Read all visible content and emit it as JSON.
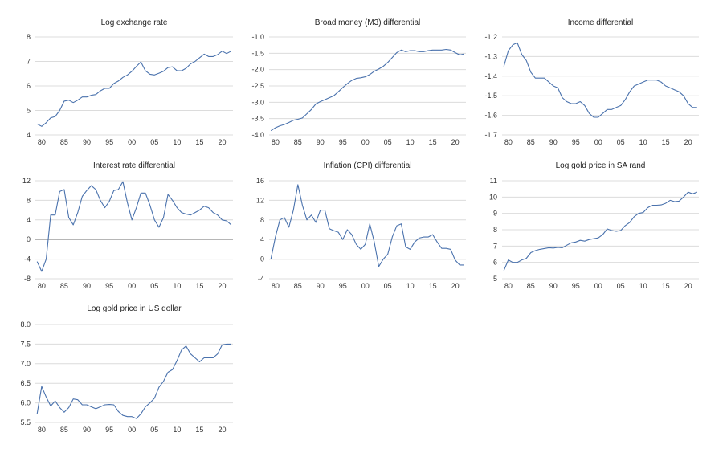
{
  "style": {
    "line_color": "#4a72ad",
    "grid_color": "#dcdcdc",
    "zero_line_color": "#9e9e9e"
  },
  "chart_data": [
    {
      "type": "line",
      "title": "Log exchange rate",
      "x": [
        1979,
        1980,
        1981,
        1982,
        1983,
        1984,
        1985,
        1986,
        1987,
        1988,
        1989,
        1990,
        1991,
        1992,
        1993,
        1994,
        1995,
        1996,
        1997,
        1998,
        1999,
        2000,
        2001,
        2002,
        2003,
        2004,
        2005,
        2006,
        2007,
        2008,
        2009,
        2010,
        2011,
        2012,
        2013,
        2014,
        2015,
        2016,
        2017,
        2018,
        2019,
        2020,
        2021,
        2022
      ],
      "values": [
        4.45,
        4.35,
        4.5,
        4.7,
        4.75,
        5.0,
        5.38,
        5.42,
        5.32,
        5.42,
        5.55,
        5.55,
        5.62,
        5.65,
        5.8,
        5.9,
        5.9,
        6.1,
        6.2,
        6.35,
        6.45,
        6.6,
        6.8,
        6.98,
        6.62,
        6.48,
        6.45,
        6.52,
        6.6,
        6.75,
        6.78,
        6.62,
        6.62,
        6.72,
        6.9,
        7.0,
        7.15,
        7.3,
        7.2,
        7.2,
        7.28,
        7.42,
        7.32,
        7.42
      ],
      "ylim": [
        4,
        8
      ],
      "yticks": [
        "4",
        "5",
        "6",
        "7",
        "8"
      ],
      "xticks": [
        "80",
        "85",
        "90",
        "95",
        "00",
        "05",
        "10",
        "15",
        "20"
      ]
    },
    {
      "type": "line",
      "title": "Broad money (M3) differential",
      "x": [
        1979,
        1980,
        1981,
        1982,
        1983,
        1984,
        1985,
        1986,
        1987,
        1988,
        1989,
        1990,
        1991,
        1992,
        1993,
        1994,
        1995,
        1996,
        1997,
        1998,
        1999,
        2000,
        2001,
        2002,
        2003,
        2004,
        2005,
        2006,
        2007,
        2008,
        2009,
        2010,
        2011,
        2012,
        2013,
        2014,
        2015,
        2016,
        2017,
        2018,
        2019,
        2020,
        2021,
        2022
      ],
      "values": [
        -3.87,
        -3.78,
        -3.72,
        -3.68,
        -3.62,
        -3.55,
        -3.52,
        -3.48,
        -3.35,
        -3.22,
        -3.05,
        -2.98,
        -2.92,
        -2.86,
        -2.8,
        -2.68,
        -2.55,
        -2.43,
        -2.33,
        -2.27,
        -2.25,
        -2.22,
        -2.15,
        -2.05,
        -1.98,
        -1.9,
        -1.78,
        -1.63,
        -1.48,
        -1.4,
        -1.45,
        -1.42,
        -1.42,
        -1.45,
        -1.45,
        -1.42,
        -1.4,
        -1.4,
        -1.4,
        -1.38,
        -1.4,
        -1.48,
        -1.55,
        -1.52
      ],
      "ylim": [
        -4,
        -1
      ],
      "yticks": [
        "-4.0",
        "-3.5",
        "-3.0",
        "-2.5",
        "-2.0",
        "-1.5",
        "-1.0"
      ],
      "xticks": [
        "80",
        "85",
        "90",
        "95",
        "00",
        "05",
        "10",
        "15",
        "20"
      ]
    },
    {
      "type": "line",
      "title": "Income differential",
      "x": [
        1979,
        1980,
        1981,
        1982,
        1983,
        1984,
        1985,
        1986,
        1987,
        1988,
        1989,
        1990,
        1991,
        1992,
        1993,
        1994,
        1995,
        1996,
        1997,
        1998,
        1999,
        2000,
        2001,
        2002,
        2003,
        2004,
        2005,
        2006,
        2007,
        2008,
        2009,
        2010,
        2011,
        2012,
        2013,
        2014,
        2015,
        2016,
        2017,
        2018,
        2019,
        2020,
        2021,
        2022
      ],
      "values": [
        -1.35,
        -1.27,
        -1.24,
        -1.23,
        -1.29,
        -1.32,
        -1.38,
        -1.41,
        -1.41,
        -1.41,
        -1.43,
        -1.45,
        -1.46,
        -1.51,
        -1.53,
        -1.54,
        -1.54,
        -1.53,
        -1.55,
        -1.59,
        -1.61,
        -1.61,
        -1.59,
        -1.57,
        -1.57,
        -1.56,
        -1.55,
        -1.52,
        -1.48,
        -1.45,
        -1.44,
        -1.43,
        -1.42,
        -1.42,
        -1.42,
        -1.43,
        -1.45,
        -1.46,
        -1.47,
        -1.48,
        -1.5,
        -1.54,
        -1.56,
        -1.56
      ],
      "ylim": [
        -1.7,
        -1.2
      ],
      "yticks": [
        "-1.7",
        "-1.6",
        "-1.5",
        "-1.4",
        "-1.3",
        "-1.2"
      ],
      "xticks": [
        "80",
        "85",
        "90",
        "95",
        "00",
        "05",
        "10",
        "15",
        "20"
      ]
    },
    {
      "type": "line",
      "title": "Interest rate differential",
      "x": [
        1979,
        1980,
        1981,
        1982,
        1983,
        1984,
        1985,
        1986,
        1987,
        1988,
        1989,
        1990,
        1991,
        1992,
        1993,
        1994,
        1995,
        1996,
        1997,
        1998,
        1999,
        2000,
        2001,
        2002,
        2003,
        2004,
        2005,
        2006,
        2007,
        2008,
        2009,
        2010,
        2011,
        2012,
        2013,
        2014,
        2015,
        2016,
        2017,
        2018,
        2019,
        2020,
        2021,
        2022
      ],
      "values": [
        -4.5,
        -6.5,
        -4.0,
        5.0,
        5.0,
        9.8,
        10.2,
        4.5,
        3.0,
        5.5,
        8.8,
        10.0,
        11.0,
        10.2,
        8.0,
        6.5,
        7.8,
        10.0,
        10.2,
        11.8,
        7.5,
        4.0,
        6.5,
        9.5,
        9.5,
        7.0,
        4.0,
        2.5,
        4.5,
        9.2,
        8.0,
        6.5,
        5.5,
        5.2,
        5.0,
        5.5,
        6.0,
        6.8,
        6.5,
        5.5,
        5.0,
        4.0,
        3.8,
        3.0
      ],
      "ylim": [
        -8,
        12
      ],
      "yticks": [
        "-8",
        "-4",
        "0",
        "4",
        "8",
        "12"
      ],
      "xticks": [
        "80",
        "85",
        "90",
        "95",
        "00",
        "05",
        "10",
        "15",
        "20"
      ],
      "zero_line": true
    },
    {
      "type": "line",
      "title": "Inflation (CPI) differential",
      "x": [
        1979,
        1980,
        1981,
        1982,
        1983,
        1984,
        1985,
        1986,
        1987,
        1988,
        1989,
        1990,
        1991,
        1992,
        1993,
        1994,
        1995,
        1996,
        1997,
        1998,
        1999,
        2000,
        2001,
        2002,
        2003,
        2004,
        2005,
        2006,
        2007,
        2008,
        2009,
        2010,
        2011,
        2012,
        2013,
        2014,
        2015,
        2016,
        2017,
        2018,
        2019,
        2020,
        2021,
        2022
      ],
      "values": [
        0.0,
        4.5,
        8.0,
        8.5,
        6.5,
        10.0,
        15.2,
        11.0,
        8.0,
        9.0,
        7.5,
        10.0,
        10.0,
        6.2,
        5.8,
        5.5,
        4.0,
        6.0,
        5.0,
        3.0,
        2.0,
        3.0,
        7.2,
        3.5,
        -1.5,
        0.0,
        1.0,
        4.5,
        6.8,
        7.2,
        2.5,
        2.0,
        3.5,
        4.3,
        4.5,
        4.5,
        5.0,
        3.5,
        2.2,
        2.2,
        2.0,
        -0.2,
        -1.2,
        -1.2
      ],
      "ylim": [
        -4,
        16
      ],
      "yticks": [
        "-4",
        "0",
        "4",
        "8",
        "12",
        "16"
      ],
      "xticks": [
        "80",
        "85",
        "90",
        "95",
        "00",
        "05",
        "10",
        "15",
        "20"
      ],
      "zero_line": true
    },
    {
      "type": "line",
      "title": "Log gold price in SA rand",
      "x": [
        1979,
        1980,
        1981,
        1982,
        1983,
        1984,
        1985,
        1986,
        1987,
        1988,
        1989,
        1990,
        1991,
        1992,
        1993,
        1994,
        1995,
        1996,
        1997,
        1998,
        1999,
        2000,
        2001,
        2002,
        2003,
        2004,
        2005,
        2006,
        2007,
        2008,
        2009,
        2010,
        2011,
        2012,
        2013,
        2014,
        2015,
        2016,
        2017,
        2018,
        2019,
        2020,
        2021,
        2022
      ],
      "values": [
        5.5,
        6.15,
        6.0,
        6.0,
        6.15,
        6.25,
        6.6,
        6.72,
        6.8,
        6.85,
        6.9,
        6.88,
        6.92,
        6.9,
        7.05,
        7.2,
        7.25,
        7.35,
        7.3,
        7.4,
        7.45,
        7.5,
        7.7,
        8.05,
        7.95,
        7.9,
        7.95,
        8.25,
        8.45,
        8.8,
        9.0,
        9.05,
        9.35,
        9.5,
        9.5,
        9.52,
        9.62,
        9.8,
        9.72,
        9.75,
        10.0,
        10.3,
        10.2,
        10.3
      ],
      "ylim": [
        5,
        11
      ],
      "yticks": [
        "5",
        "6",
        "7",
        "8",
        "9",
        "10",
        "11"
      ],
      "xticks": [
        "80",
        "85",
        "90",
        "95",
        "00",
        "05",
        "10",
        "15",
        "20"
      ]
    },
    {
      "type": "line",
      "title": "Log gold price in US dollar",
      "x": [
        1979,
        1980,
        1981,
        1982,
        1983,
        1984,
        1985,
        1986,
        1987,
        1988,
        1989,
        1990,
        1991,
        1992,
        1993,
        1994,
        1995,
        1996,
        1997,
        1998,
        1999,
        2000,
        2001,
        2002,
        2003,
        2004,
        2005,
        2006,
        2007,
        2008,
        2009,
        2010,
        2011,
        2012,
        2013,
        2014,
        2015,
        2016,
        2017,
        2018,
        2019,
        2020,
        2021,
        2022
      ],
      "values": [
        5.72,
        6.42,
        6.15,
        5.92,
        6.05,
        5.88,
        5.76,
        5.88,
        6.1,
        6.08,
        5.95,
        5.95,
        5.9,
        5.85,
        5.9,
        5.95,
        5.96,
        5.95,
        5.78,
        5.68,
        5.65,
        5.65,
        5.6,
        5.72,
        5.9,
        6.0,
        6.12,
        6.4,
        6.55,
        6.78,
        6.85,
        7.08,
        7.35,
        7.45,
        7.25,
        7.15,
        7.05,
        7.15,
        7.15,
        7.15,
        7.25,
        7.48,
        7.5,
        7.5
      ],
      "ylim": [
        5.5,
        8.0
      ],
      "yticks": [
        "5.5",
        "6.0",
        "6.5",
        "7.0",
        "7.5",
        "8.0"
      ],
      "xticks": [
        "80",
        "85",
        "90",
        "95",
        "00",
        "05",
        "10",
        "15",
        "20"
      ]
    }
  ]
}
